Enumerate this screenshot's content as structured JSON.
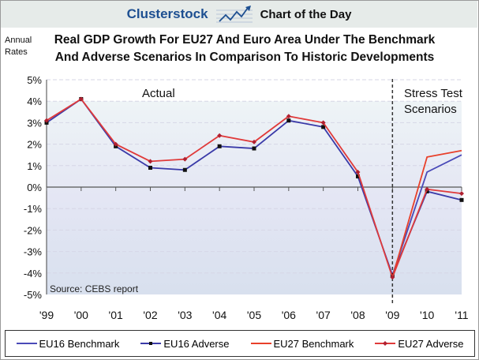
{
  "header": {
    "brand": "Clusterstock",
    "tagline": "Chart of the Day"
  },
  "chart_data": {
    "type": "line",
    "title": "Real GDP Growth For EU27 And Euro Area Under The Benchmark And Adverse Scenarios  In Comparison To Historic Developments",
    "title_lines": [
      "Real GDP Growth For EU27 And Euro Area Under The Benchmark",
      "And Adverse Scenarios  In Comparison To Historic Developments"
    ],
    "ylabel_lines": [
      "Annual",
      "Rates"
    ],
    "categories": [
      "'99",
      "'00",
      "'01",
      "'02",
      "'03",
      "'04",
      "'05",
      "'06",
      "'07",
      "'08",
      "'09",
      "'10",
      "'11"
    ],
    "yticks": [
      "5%",
      "4%",
      "3%",
      "2%",
      "1%",
      "0%",
      "-1%",
      "-2%",
      "-3%",
      "-4%",
      "-5%"
    ],
    "ylim": [
      -5,
      5
    ],
    "grid": true,
    "legend_position": "bottom",
    "annotations": {
      "actual": "Actual",
      "stress_lines": [
        "Stress Test",
        "Scenarios"
      ],
      "source": "Source: CEBS report"
    },
    "series": [
      {
        "name": "EU16 Benchmark",
        "color": "#4a4ab8",
        "markers": false,
        "values": [
          null,
          null,
          null,
          null,
          null,
          null,
          null,
          null,
          null,
          null,
          -4.1,
          0.7,
          1.5
        ]
      },
      {
        "name": "EU16 Adverse",
        "color": "#3a3aa8",
        "markers": true,
        "values": [
          3.0,
          4.1,
          1.9,
          0.9,
          0.8,
          1.9,
          1.8,
          3.1,
          2.8,
          0.5,
          -4.1,
          -0.2,
          -0.6
        ]
      },
      {
        "name": "EU27 Benchmark",
        "color": "#e8402a",
        "markers": false,
        "values": [
          null,
          null,
          null,
          null,
          null,
          null,
          null,
          null,
          null,
          null,
          -4.2,
          1.4,
          1.7
        ]
      },
      {
        "name": "EU27 Adverse",
        "color": "#e03a3a",
        "markers": true,
        "values": [
          3.1,
          4.1,
          2.0,
          1.2,
          1.3,
          2.4,
          2.1,
          3.3,
          3.0,
          0.7,
          -4.2,
          -0.1,
          -0.3
        ]
      }
    ]
  }
}
